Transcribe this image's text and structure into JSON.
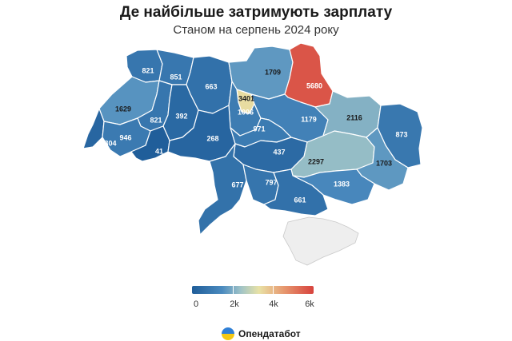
{
  "title": "Де найбільше затримують зарплату",
  "subtitle": "Станом на серпень 2024 року",
  "legend": {
    "labels": [
      "0",
      "2k",
      "4k",
      "6k"
    ],
    "min": 0,
    "max": 6000,
    "colors": [
      "#1f5d99",
      "#4b8bbf",
      "#9fc3c7",
      "#e8e2a6",
      "#e79a70",
      "#d7423d"
    ]
  },
  "brand": {
    "name": "Опендатабот",
    "logo_colors": [
      "#2f7fd6",
      "#f4c814"
    ]
  },
  "map": {
    "type": "choropleth",
    "country": "Ukraine",
    "no_data_region": "Crimea",
    "regions": [
      {
        "label": "821",
        "value": 821
      },
      {
        "label": "851",
        "value": 851
      },
      {
        "label": "663",
        "value": 663
      },
      {
        "label": "1709",
        "value": 1709
      },
      {
        "label": "5680",
        "value": 5680
      },
      {
        "label": "1629",
        "value": 1629
      },
      {
        "label": "821",
        "value": 821
      },
      {
        "label": "392",
        "value": 392
      },
      {
        "label": "3401",
        "value": 3401
      },
      {
        "label": "1006",
        "value": 1006
      },
      {
        "label": "1179",
        "value": 1179
      },
      {
        "label": "2116",
        "value": 2116
      },
      {
        "label": "873",
        "value": 873
      },
      {
        "label": "304",
        "value": 304
      },
      {
        "label": "946",
        "value": 946
      },
      {
        "label": "41",
        "value": 41
      },
      {
        "label": "268",
        "value": 268
      },
      {
        "label": "971",
        "value": 971
      },
      {
        "label": "437",
        "value": 437
      },
      {
        "label": "2297",
        "value": 2297
      },
      {
        "label": "1703",
        "value": 1703
      },
      {
        "label": "677",
        "value": 677
      },
      {
        "label": "797",
        "value": 797
      },
      {
        "label": "1383",
        "value": 1383
      },
      {
        "label": "661",
        "value": 661
      }
    ]
  }
}
